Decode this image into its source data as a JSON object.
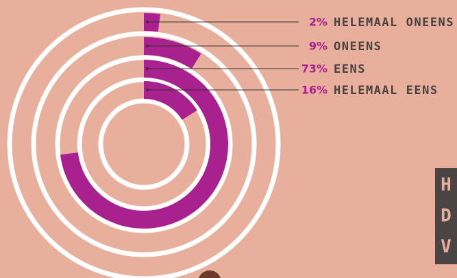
{
  "chart_data": {
    "type": "radial_bar",
    "categories": [
      "HELEMAAL ONEENS",
      "ONEENS",
      "EENS",
      "HELEMAAL EENS"
    ],
    "values": [
      2,
      9,
      73,
      16
    ],
    "value_labels": [
      "2%",
      "9%",
      "73%",
      "16%"
    ],
    "color": "#a8218e",
    "ylim": [
      0,
      100
    ]
  },
  "logo": [
    "H",
    "D",
    "V"
  ]
}
